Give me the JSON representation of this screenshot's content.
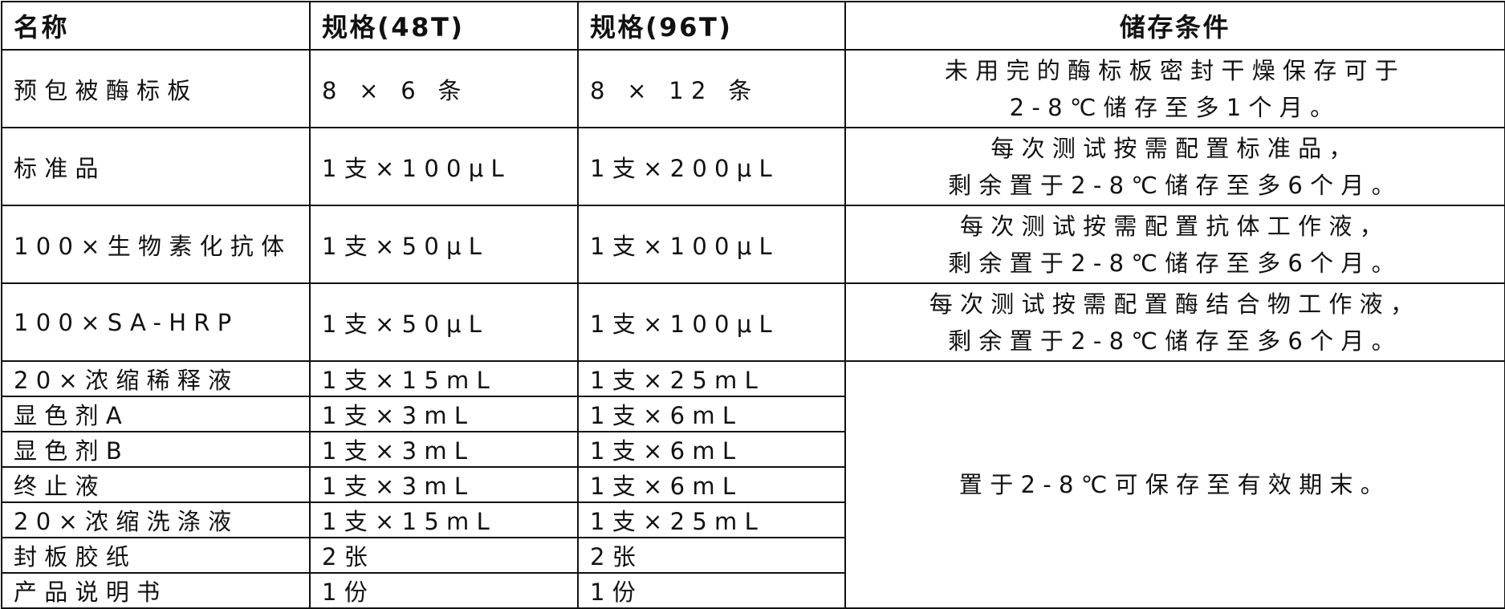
{
  "headers": [
    "名称",
    "规格(48T)",
    "规格(96T)",
    "储存条件"
  ],
  "rows": [
    {
      "name": "预包被酶标板",
      "spec48": "8 × 6 条",
      "spec96": "8 × 12 条",
      "storage": [
        "未用完的酶标板密封干燥保存可于",
        "2-8℃储存至多1个月。"
      ]
    },
    {
      "name": "标准品",
      "spec48": "1支×100μL",
      "spec96": "1支×200μL",
      "storage": [
        "每次测试按需配置标准品，",
        "剩余置于2-8℃储存至多6个月。"
      ]
    },
    {
      "name": "100×生物素化抗体",
      "spec48": "1支×50μL",
      "spec96": "1支×100μL",
      "storage": [
        "每次测试按需配置抗体工作液，",
        "剩余置于2-8℃储存至多6个月。"
      ]
    },
    {
      "name": "100×SA-HRP",
      "spec48": "1支×50μL",
      "spec96": "1支×100μL",
      "storage": [
        "每次测试按需配置酶结合物工作液，",
        "剩余置于2-8℃储存至多6个月。"
      ]
    },
    {
      "name": "20×浓缩稀释液",
      "spec48": "1支×15mL",
      "spec96": "1支×25mL"
    },
    {
      "name": "显色剂A",
      "spec48": "1支×3mL",
      "spec96": "1支×6mL"
    },
    {
      "name": "显色剂B",
      "spec48": "1支×3mL",
      "spec96": "1支×6mL"
    },
    {
      "name": "终止液",
      "spec48": "1支×3mL",
      "spec96": "1支×6mL"
    },
    {
      "name": "20×浓缩洗涤液",
      "spec48": "1支×15mL",
      "spec96": "1支×25mL"
    },
    {
      "name": "封板胶纸",
      "spec48": "2张",
      "spec96": "2张"
    },
    {
      "name": "产品说明书",
      "spec48": "1份",
      "spec96": "1份"
    }
  ],
  "merged_storage": "置于2-8℃可保存至有效期末。"
}
